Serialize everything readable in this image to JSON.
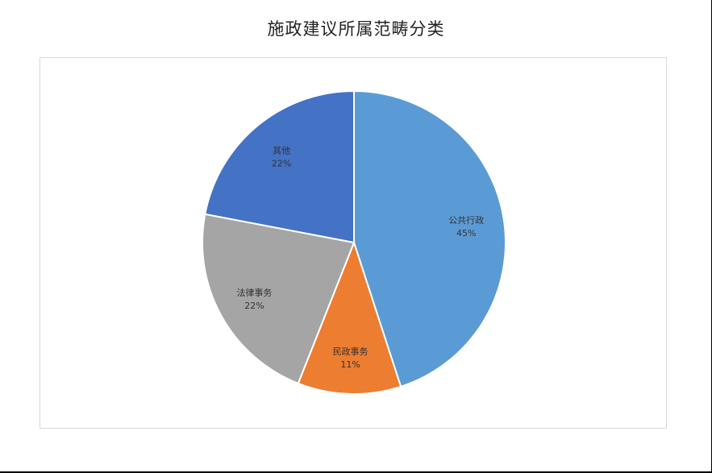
{
  "chart_data": {
    "type": "pie",
    "title": "施政建议所属范畴分类",
    "categories": [
      "公共行政",
      "民政事务",
      "法律事务",
      "其他"
    ],
    "values": [
      45,
      11,
      22,
      22
    ],
    "value_labels": [
      "45%",
      "11%",
      "22%",
      "22%"
    ],
    "colors": [
      "#5b9bd5",
      "#ed7d31",
      "#a5a5a5",
      "#4472c4"
    ],
    "start_angle_deg": 0,
    "direction": "clockwise",
    "legend": "none",
    "data_labels": "inside"
  }
}
